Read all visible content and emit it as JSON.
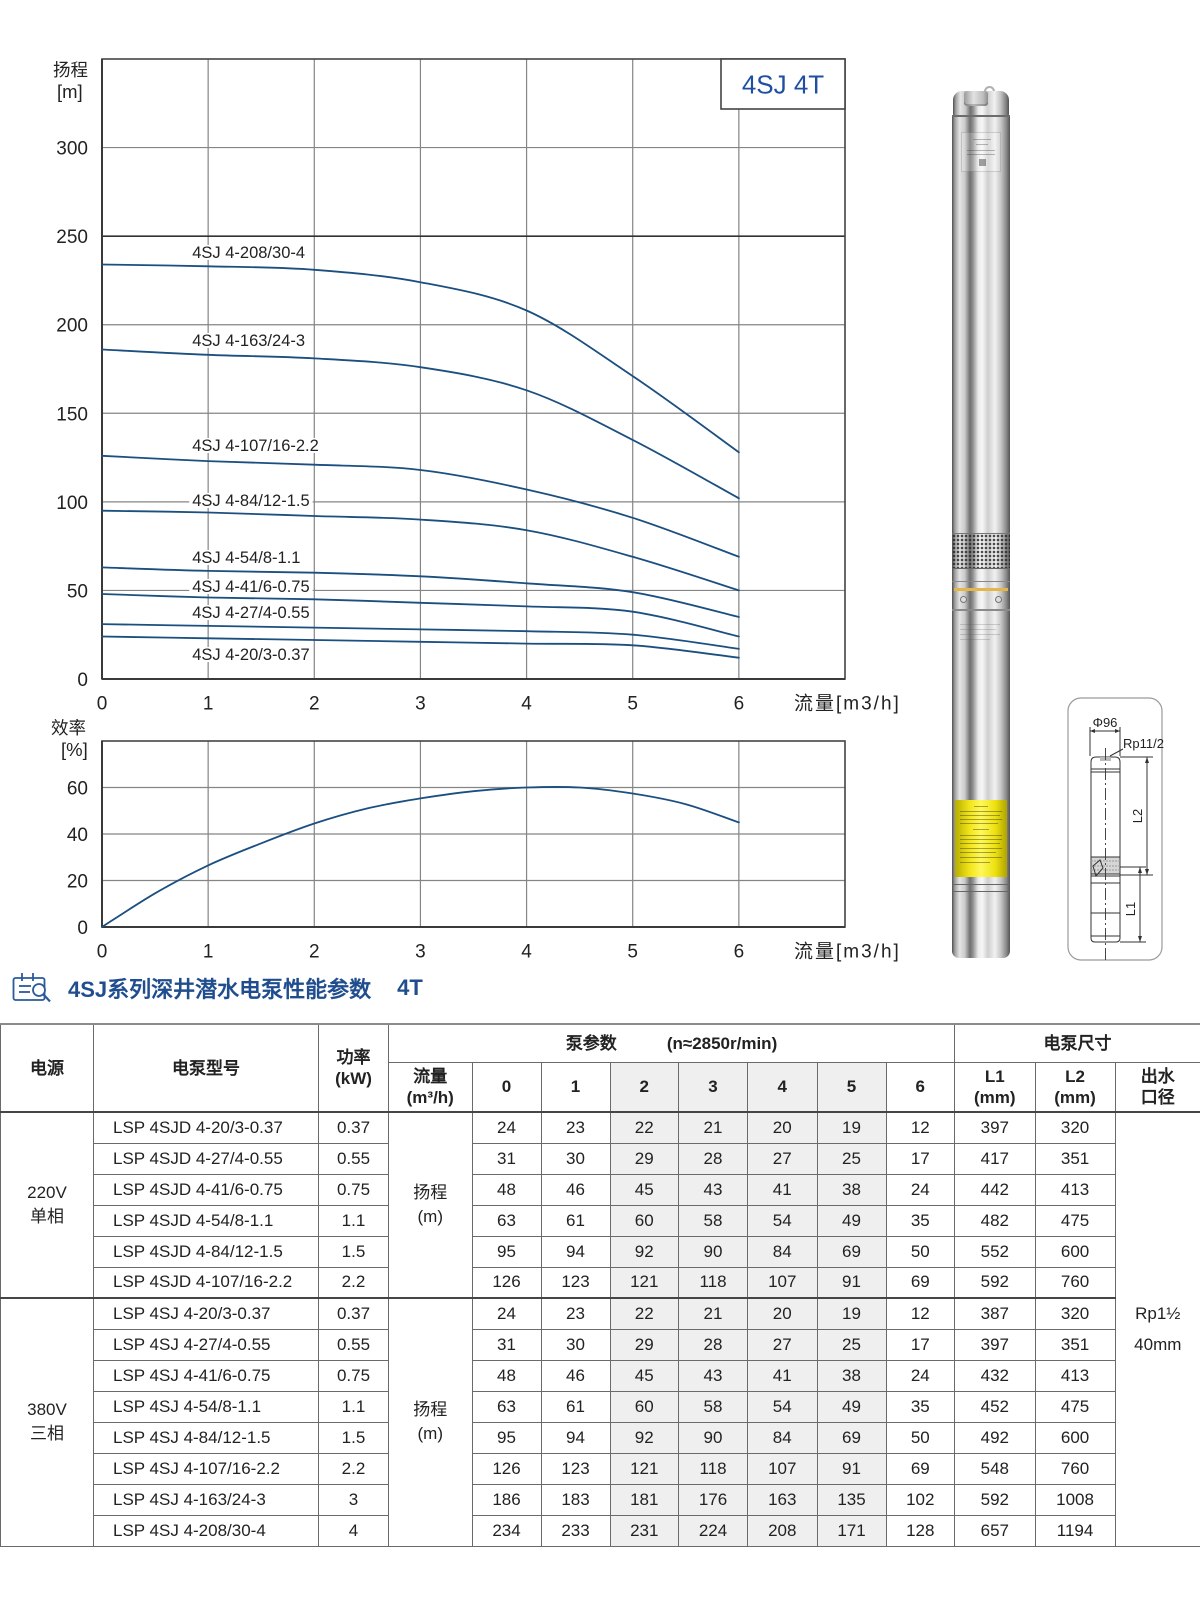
{
  "theme": {
    "accent": "#1f4d8e",
    "curve": "#1b4f80",
    "shade": "#efefef",
    "title_box_text": "#1f4fa0",
    "warning_label": "#f2e51a"
  },
  "chart_data": [
    {
      "type": "line",
      "title": "4SJ 4T",
      "xlabel": "流量[m3/h]",
      "ylabel": "扬程",
      "ylabel_unit": "[m]",
      "xlim": [
        0,
        7
      ],
      "ylim": [
        0,
        350
      ],
      "x_ticks": [
        0,
        1,
        2,
        3,
        4,
        5,
        6
      ],
      "y_ticks": [
        0,
        50,
        100,
        150,
        200,
        250,
        300
      ],
      "grid": true,
      "highlight_gridline": 250,
      "legend": "inline labels",
      "x": [
        0,
        1,
        2,
        3,
        4,
        5,
        6
      ],
      "series": [
        {
          "name": "4SJ 4-208/30-4",
          "values": [
            234,
            233,
            231,
            224,
            208,
            171,
            128
          ],
          "label_at": [
            0.85,
            237.7
          ]
        },
        {
          "name": "4SJ 4-163/24-3",
          "values": [
            186,
            183,
            181,
            176,
            163,
            135,
            102
          ],
          "label_at": [
            0.85,
            188.0
          ]
        },
        {
          "name": "4SJ 4-107/16-2.2",
          "values": [
            126,
            123,
            121,
            118,
            107,
            91,
            69
          ],
          "label_at": [
            0.85,
            128.7
          ]
        },
        {
          "name": "4SJ 4-84/12-1.5",
          "values": [
            95,
            94,
            92,
            90,
            84,
            69,
            50
          ],
          "label_at": [
            0.85,
            97.7
          ]
        },
        {
          "name": "4SJ 4-54/8-1.1",
          "values": [
            63,
            61,
            60,
            58,
            54,
            49,
            35
          ],
          "label_at": [
            0.85,
            65.5
          ]
        },
        {
          "name": "4SJ 4-41/6-0.75",
          "values": [
            48,
            46,
            45,
            43,
            41,
            38,
            24
          ],
          "label_at": [
            0.85,
            49.1
          ]
        },
        {
          "name": "4SJ 4-27/4-0.55",
          "values": [
            31,
            30,
            29,
            28,
            27,
            25,
            17
          ],
          "label_at": [
            0.85,
            34.4
          ]
        },
        {
          "name": "4SJ 4-20/3-0.37",
          "values": [
            24,
            23,
            22,
            21,
            20,
            19,
            12
          ],
          "label_at": [
            0.85,
            10.7
          ]
        }
      ]
    },
    {
      "type": "line",
      "title": "",
      "xlabel": "流量[m3/h]",
      "ylabel": "效率",
      "ylabel_unit": "[%]",
      "xlim": [
        0,
        7
      ],
      "ylim": [
        0,
        80
      ],
      "x_ticks": [
        0,
        1,
        2,
        3,
        4,
        5,
        6
      ],
      "y_ticks": [
        0,
        20,
        40,
        60
      ],
      "grid": true,
      "x": [
        0,
        0.5,
        1,
        1.5,
        2,
        2.5,
        3,
        3.5,
        4,
        4.5,
        5,
        5.5,
        6
      ],
      "series": [
        {
          "name": "效率",
          "values": [
            0,
            14.5,
            26.5,
            36,
            44.5,
            51,
            55.3,
            58.4,
            60,
            60,
            57.4,
            52.8,
            45
          ]
        }
      ]
    }
  ],
  "dimension_diagram": {
    "diameter": "Φ96",
    "outlet_thread": "Rp11/2",
    "length_2": "L2",
    "length_1": "L1"
  },
  "section": {
    "icon": "calendar-search-icon",
    "title": "4SJ系列深井潜水电泵性能参数",
    "suffix": "4T"
  },
  "table": {
    "header": {
      "power_source": "电源",
      "model": "电泵型号",
      "power_line1": "功率",
      "power_line2": "(kW)",
      "pump_params": "泵参数",
      "speed": "(n≈2850r/min)",
      "dimensions": "电泵尺寸",
      "flow_line1": "流量",
      "flow_line2": "(m³/h)",
      "flow_points": [
        "0",
        "1",
        "2",
        "3",
        "4",
        "5",
        "6"
      ],
      "l1_line1": "L1",
      "l1_line2": "(mm)",
      "l2_line1": "L2",
      "l2_line2": "(mm)",
      "outlet_line1": "出水",
      "outlet_line2": "口径"
    },
    "shaded_flow_indices": [
      2,
      3,
      4,
      5
    ],
    "head_label": "扬程",
    "head_unit": "(m)",
    "outlet_value_line1": "Rp1½",
    "outlet_value_line2": "40mm",
    "groups": [
      {
        "voltage": "220V",
        "phase": "单相",
        "rows": [
          {
            "model": "LSP 4SJD 4-20/3-0.37",
            "power": "0.37",
            "head": [
              24,
              23,
              22,
              21,
              20,
              19,
              12
            ],
            "l1": "397",
            "l2": "320"
          },
          {
            "model": "LSP 4SJD 4-27/4-0.55",
            "power": "0.55",
            "head": [
              31,
              30,
              29,
              28,
              27,
              25,
              17
            ],
            "l1": "417",
            "l2": "351"
          },
          {
            "model": "LSP 4SJD 4-41/6-0.75",
            "power": "0.75",
            "head": [
              48,
              46,
              45,
              43,
              41,
              38,
              24
            ],
            "l1": "442",
            "l2": "413"
          },
          {
            "model": "LSP 4SJD 4-54/8-1.1",
            "power": "1.1",
            "head": [
              63,
              61,
              60,
              58,
              54,
              49,
              35
            ],
            "l1": "482",
            "l2": "475"
          },
          {
            "model": "LSP 4SJD 4-84/12-1.5",
            "power": "1.5",
            "head": [
              95,
              94,
              92,
              90,
              84,
              69,
              50
            ],
            "l1": "552",
            "l2": "600"
          },
          {
            "model": "LSP 4SJD 4-107/16-2.2",
            "power": "2.2",
            "head": [
              126,
              123,
              121,
              118,
              107,
              91,
              69
            ],
            "l1": "592",
            "l2": "760"
          }
        ]
      },
      {
        "voltage": "380V",
        "phase": "三相",
        "rows": [
          {
            "model": "LSP 4SJ 4-20/3-0.37",
            "power": "0.37",
            "head": [
              24,
              23,
              22,
              21,
              20,
              19,
              12
            ],
            "l1": "387",
            "l2": "320"
          },
          {
            "model": "LSP 4SJ 4-27/4-0.55",
            "power": "0.55",
            "head": [
              31,
              30,
              29,
              28,
              27,
              25,
              17
            ],
            "l1": "397",
            "l2": "351"
          },
          {
            "model": "LSP 4SJ 4-41/6-0.75",
            "power": "0.75",
            "head": [
              48,
              46,
              45,
              43,
              41,
              38,
              24
            ],
            "l1": "432",
            "l2": "413"
          },
          {
            "model": "LSP 4SJ 4-54/8-1.1",
            "power": "1.1",
            "head": [
              63,
              61,
              60,
              58,
              54,
              49,
              35
            ],
            "l1": "452",
            "l2": "475"
          },
          {
            "model": "LSP 4SJ 4-84/12-1.5",
            "power": "1.5",
            "head": [
              95,
              94,
              92,
              90,
              84,
              69,
              50
            ],
            "l1": "492",
            "l2": "600"
          },
          {
            "model": "LSP 4SJ 4-107/16-2.2",
            "power": "2.2",
            "head": [
              126,
              123,
              121,
              118,
              107,
              91,
              69
            ],
            "l1": "548",
            "l2": "760"
          },
          {
            "model": "LSP 4SJ 4-163/24-3",
            "power": "3",
            "head": [
              186,
              183,
              181,
              176,
              163,
              135,
              102
            ],
            "l1": "592",
            "l2": "1008"
          },
          {
            "model": "LSP 4SJ 4-208/30-4",
            "power": "4",
            "head": [
              234,
              233,
              231,
              224,
              208,
              171,
              128
            ],
            "l1": "657",
            "l2": "1194"
          }
        ]
      }
    ]
  }
}
